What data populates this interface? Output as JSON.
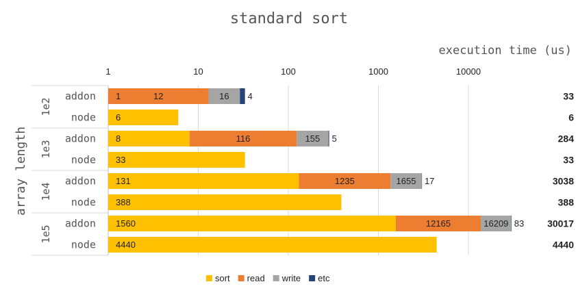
{
  "chart_data": {
    "type": "bar",
    "orientation": "horizontal",
    "stacked": true,
    "x_scale": "log",
    "xlim": [
      1,
      50000
    ],
    "title": "standard sort",
    "xlabel": "execution time (us)",
    "ylabel": "array length",
    "x_ticks": [
      "1",
      "10",
      "100",
      "1000",
      "10000"
    ],
    "grid": true,
    "legend_position": "bottom",
    "segments": [
      {
        "key": "sort",
        "name": "sort",
        "color": "#FFC000"
      },
      {
        "key": "read",
        "name": "read",
        "color": "#ED7D31"
      },
      {
        "key": "write",
        "name": "write",
        "color": "#A5A5A5"
      },
      {
        "key": "etc",
        "name": "etc",
        "color": "#264478"
      }
    ],
    "groups": [
      {
        "label": "1e2",
        "rows": [
          {
            "label": "addon",
            "sort": 1,
            "read": 12,
            "write": 16,
            "etc": 4,
            "total": "33"
          },
          {
            "label": "node",
            "sort": 6,
            "read": null,
            "write": null,
            "etc": null,
            "total": "6"
          }
        ]
      },
      {
        "label": "1e3",
        "rows": [
          {
            "label": "addon",
            "sort": 8,
            "read": 116,
            "write": 155,
            "etc": 5,
            "total": "284"
          },
          {
            "label": "node",
            "sort": 33,
            "read": null,
            "write": null,
            "etc": null,
            "total": "33"
          }
        ]
      },
      {
        "label": "1e4",
        "rows": [
          {
            "label": "addon",
            "sort": 131,
            "read": 1235,
            "write": 1655,
            "etc": 17,
            "total": "3038"
          },
          {
            "label": "node",
            "sort": 388,
            "read": null,
            "write": null,
            "etc": null,
            "total": "388"
          }
        ]
      },
      {
        "label": "1e5",
        "rows": [
          {
            "label": "addon",
            "sort": 1560,
            "read": 12165,
            "write": 16209,
            "etc": 83,
            "total": "30017"
          },
          {
            "label": "node",
            "sort": 4440,
            "read": null,
            "write": null,
            "etc": null,
            "total": "4440"
          }
        ]
      }
    ]
  }
}
